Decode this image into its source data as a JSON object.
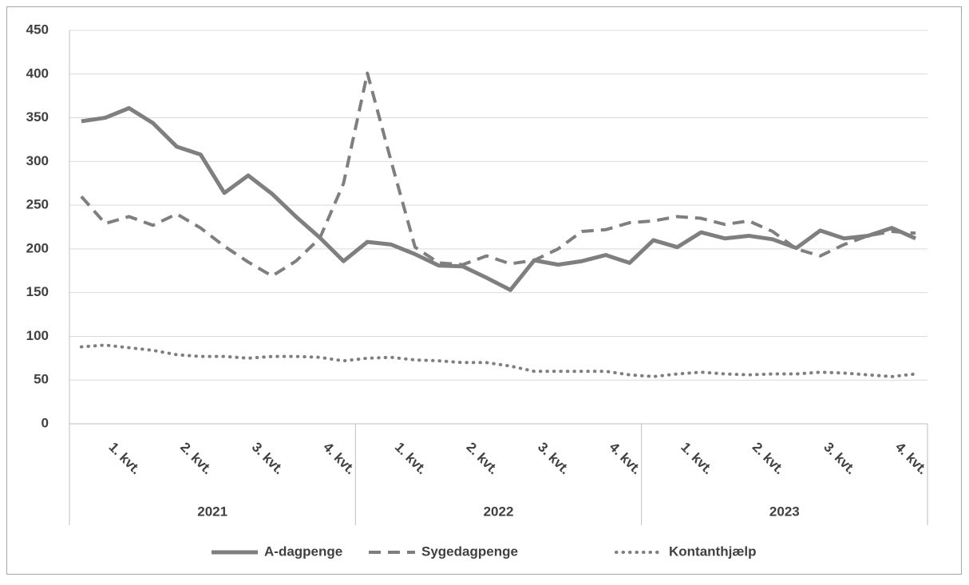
{
  "chart_data": {
    "type": "line",
    "categories": [
      null,
      null,
      "1. kvt.",
      null,
      null,
      "2. kvt.",
      null,
      null,
      "3. kvt.",
      null,
      null,
      "4. kvt.",
      null,
      null,
      "1. kvt.",
      null,
      null,
      "2. kvt.",
      null,
      null,
      "3. kvt.",
      null,
      null,
      "4. kvt.",
      null,
      null,
      "1. kvt.",
      null,
      null,
      "2. kvt.",
      null,
      null,
      "3. kvt.",
      null,
      null,
      "4. kvt."
    ],
    "groups": [
      "2021",
      "2022",
      "2023"
    ],
    "series": [
      {
        "name": "A-dagpenge",
        "color": "#7f7f7f",
        "style": "solid",
        "values": [
          346,
          350,
          361,
          344,
          317,
          308,
          264,
          284,
          263,
          237,
          213,
          186,
          208,
          205,
          194,
          181,
          180,
          167,
          153,
          187,
          182,
          186,
          193,
          184,
          210,
          202,
          219,
          212,
          215,
          211,
          201,
          221,
          212,
          215,
          224,
          212
        ]
      },
      {
        "name": "Sygedagpenge",
        "color": "#7f7f7f",
        "style": "dashed",
        "values": [
          260,
          229,
          237,
          227,
          240,
          224,
          203,
          185,
          169,
          186,
          212,
          275,
          401,
          300,
          202,
          184,
          182,
          192,
          183,
          187,
          200,
          220,
          222,
          230,
          232,
          237,
          235,
          228,
          232,
          220,
          200,
          192,
          205,
          215,
          220,
          218
        ]
      },
      {
        "name": "Kontanthjælp",
        "color": "#7f7f7f",
        "style": "dotted",
        "values": [
          88,
          90,
          87,
          84,
          79,
          77,
          77,
          75,
          77,
          77,
          76,
          72,
          75,
          76,
          73,
          72,
          70,
          70,
          66,
          60,
          60,
          60,
          60,
          56,
          54,
          57,
          59,
          57,
          56,
          57,
          57,
          59,
          58,
          56,
          54,
          57
        ]
      }
    ],
    "ylim": [
      0,
      450
    ],
    "yticks": [
      0,
      50,
      100,
      150,
      200,
      250,
      300,
      350,
      400,
      450
    ],
    "grid": true,
    "legend": "bottom"
  }
}
